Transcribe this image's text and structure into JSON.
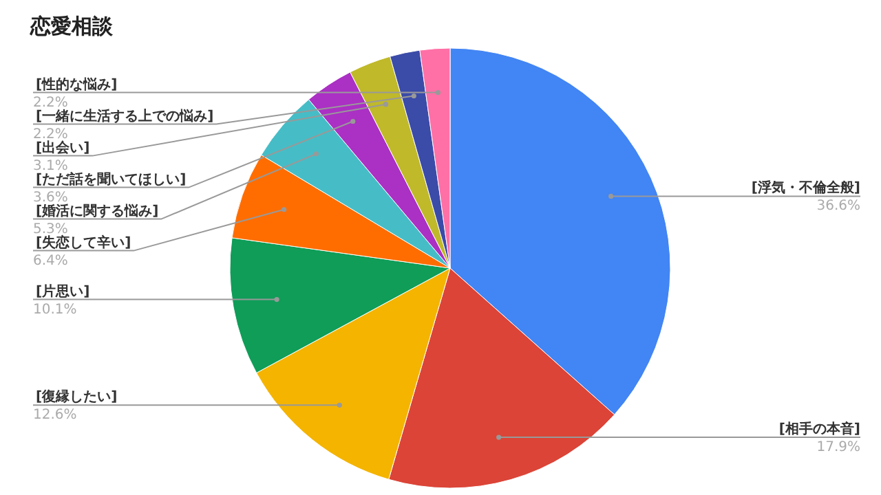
{
  "chart_data": {
    "type": "pie",
    "title": "恋愛相談",
    "categories": [
      "[浮気・不倫全般]",
      "[相手の本音]",
      "[復縁したい]",
      "[片思い]",
      "[失恋して辛い]",
      "[婚活に関する悩み]",
      "[ただ話を聞いてほしい]",
      "[出会い]",
      "[一緒に生活する上での悩み]",
      "[性的な悩み]"
    ],
    "values": [
      36.6,
      17.9,
      12.6,
      10.1,
      6.4,
      5.3,
      3.6,
      3.1,
      2.2,
      2.2
    ],
    "colors": [
      "#4285f4",
      "#db4437",
      "#f4b400",
      "#0f9d58",
      "#ff6d01",
      "#46bdc6",
      "#ab30c4",
      "#c0b92a",
      "#3b4ba8",
      "#ff70a6"
    ],
    "value_labels": [
      "36.6%",
      "17.9%",
      "12.6%",
      "10.1%",
      "6.4%",
      "5.3%",
      "3.6%",
      "3.1%",
      "2.2%",
      "2.2%"
    ]
  }
}
